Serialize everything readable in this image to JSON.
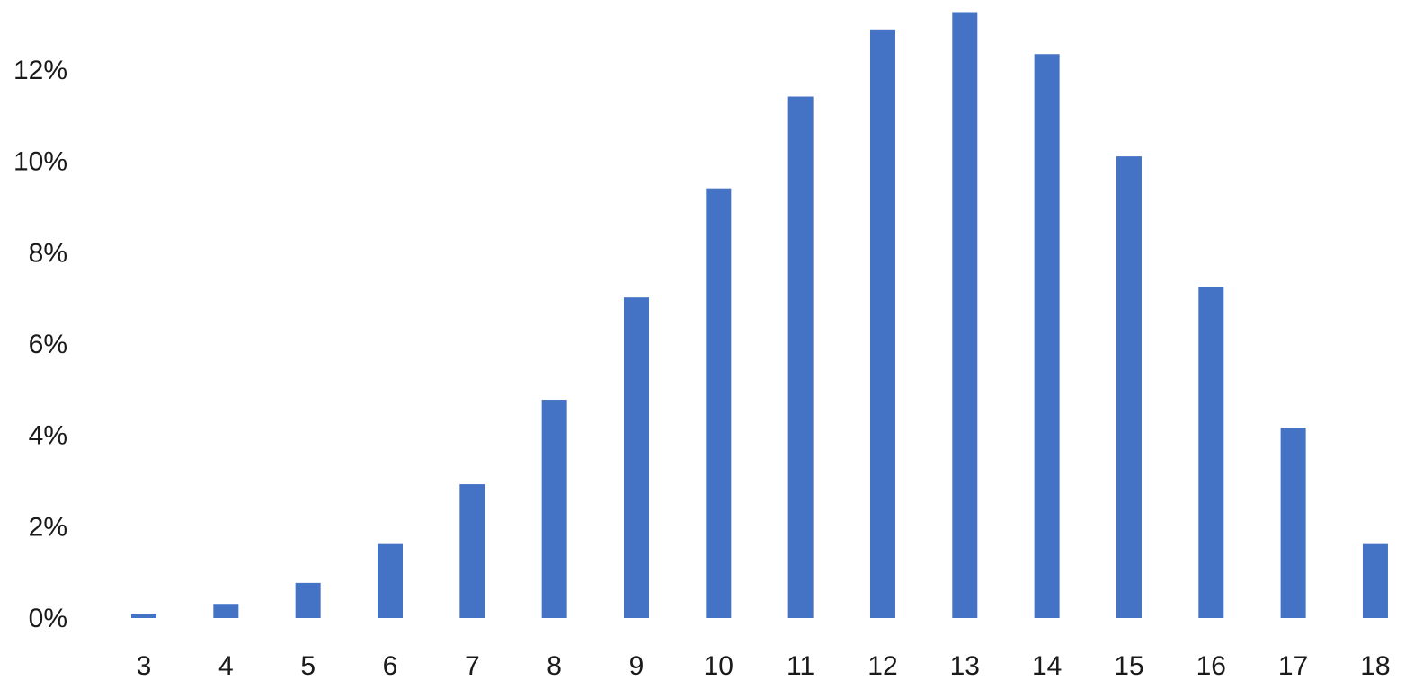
{
  "chart_data": {
    "type": "bar",
    "categories": [
      "3",
      "4",
      "5",
      "6",
      "7",
      "8",
      "9",
      "10",
      "11",
      "12",
      "13",
      "14",
      "15",
      "16",
      "17",
      "18"
    ],
    "values": [
      0.08,
      0.31,
      0.77,
      1.62,
      2.93,
      4.78,
      7.02,
      9.41,
      11.42,
      12.89,
      13.27,
      12.35,
      10.11,
      7.25,
      4.17,
      1.62
    ],
    "color": "#4472c4",
    "ylim": [
      0,
      13.5
    ],
    "yticks": [
      {
        "value": 0,
        "label": "0%"
      },
      {
        "value": 2,
        "label": "2%"
      },
      {
        "value": 4,
        "label": "4%"
      },
      {
        "value": 6,
        "label": "6%"
      },
      {
        "value": 8,
        "label": "8%"
      },
      {
        "value": 10,
        "label": "10%"
      },
      {
        "value": 12,
        "label": "12%"
      }
    ],
    "grid": false
  }
}
